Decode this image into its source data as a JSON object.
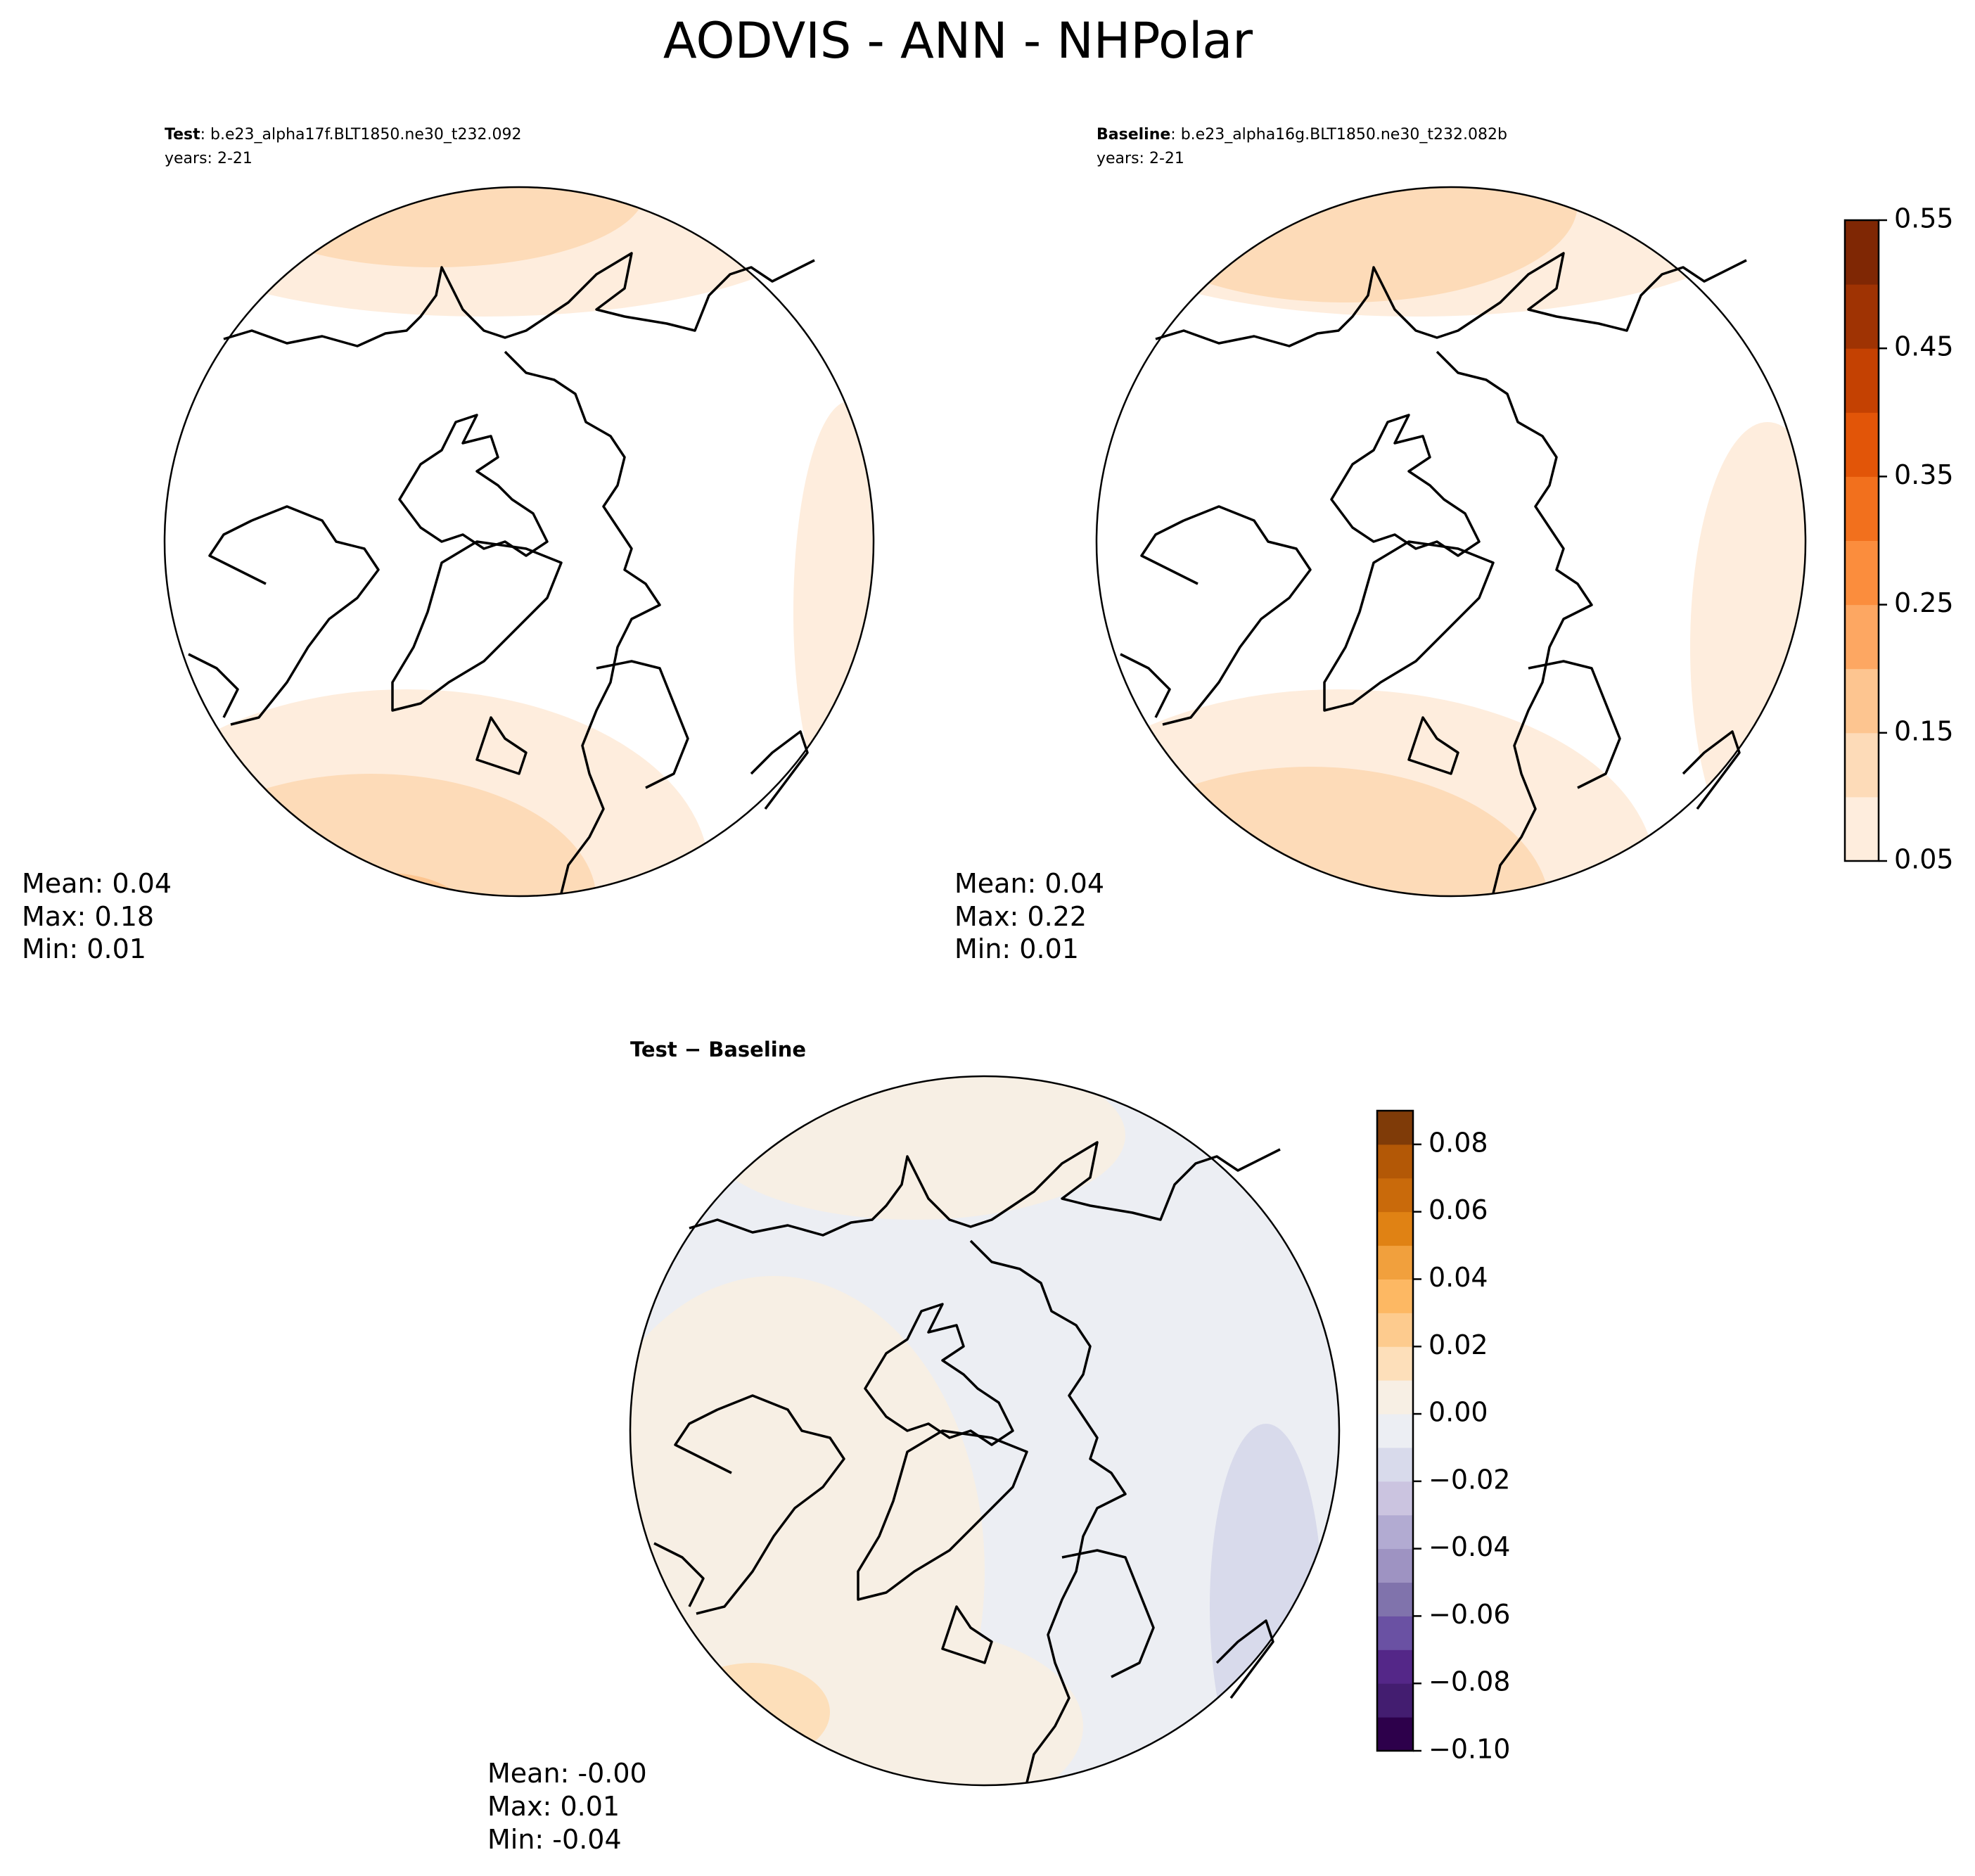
{
  "title": "AODVIS - ANN - NHPolar",
  "panels": [
    {
      "label": "Test",
      "case": ": b.e23_alpha17f.BLT1850.ne30_t232.092",
      "years": "years: 2-21",
      "stats": [
        "Mean:  0.04",
        "Max:  0.18",
        "Min:  0.01"
      ]
    },
    {
      "label": "Baseline",
      "case": ": b.e23_alpha16g.BLT1850.ne30_t232.082b",
      "years": "years: 2-21",
      "stats": [
        "Mean:  0.04",
        "Max:  0.22",
        "Min:  0.01"
      ]
    },
    {
      "label": "Test − Baseline",
      "stats": [
        "Mean: -0.00",
        "Max:  0.01",
        "Min: -0.04"
      ]
    }
  ],
  "colorbars": [
    {
      "lim": [
        0.05,
        0.55
      ],
      "ticks": [
        0.05,
        0.15,
        0.25,
        0.35,
        0.45,
        0.55
      ],
      "colors": [
        "#feeddd",
        "#fddbb8",
        "#fdc590",
        "#fda762",
        "#fb8d3d",
        "#f2701d",
        "#e25508",
        "#c44102",
        "#9f3303",
        "#7f2704"
      ]
    },
    {
      "lim": [
        -0.1,
        0.09
      ],
      "ticks": [
        {
          "value": -0.1,
          "label": "−0.10"
        },
        {
          "value": -0.08,
          "label": "−0.08"
        },
        {
          "value": -0.06,
          "label": "−0.06"
        },
        {
          "value": -0.04,
          "label": "−0.04"
        },
        {
          "value": -0.02,
          "label": "−0.02"
        },
        {
          "value": 0,
          "label": "0.00"
        },
        0.02,
        0.04,
        0.06,
        0.08
      ],
      "colors": [
        "#2d004b",
        "#431d70",
        "#542788",
        "#6a51a3",
        "#8073ac",
        "#9e93c2",
        "#b2abd2",
        "#cbc4e0",
        "#d8daeb",
        "#eceef3",
        "#f7efe4",
        "#fddfba",
        "#fdcb8e",
        "#fdb863",
        "#f1a03d",
        "#e08214",
        "#c96a0b",
        "#b35806",
        "#7f3b08"
      ]
    }
  ]
}
